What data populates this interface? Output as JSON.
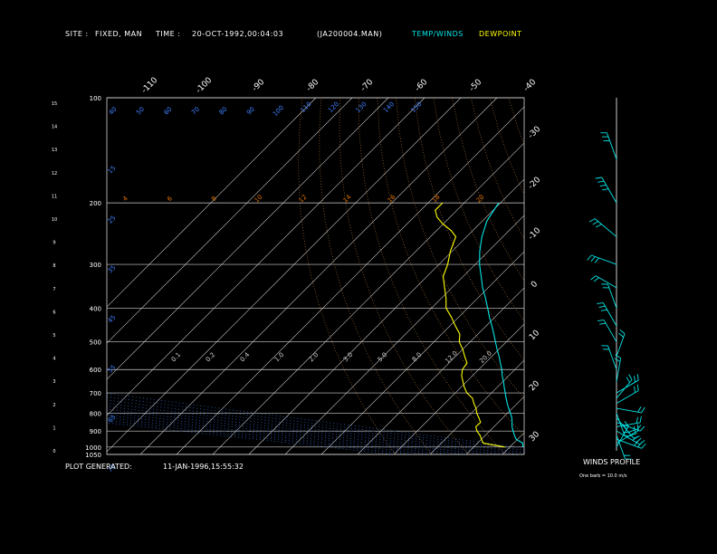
{
  "header": {
    "site_label": "SITE :",
    "site_value": "FIXED, MAN",
    "time_label": "TIME :",
    "time_value": "20-OCT-1992,00:04:03",
    "file_name": "(JA200004.MAN)",
    "legend_temp": "TEMP/WINDS",
    "legend_dew": "DEWPOINT"
  },
  "footer": {
    "generated_label": "PLOT GENERATED:",
    "generated_value": "11-JAN-1996,15:55:32",
    "winds_profile": "WINDS PROFILE",
    "barb_note": "One barb = 10.0 m/s"
  },
  "colors": {
    "temp": "#00e5e5",
    "dew": "#ffff00",
    "isotherm": "#d0d0d0",
    "isobar": "#d0d0d0",
    "mixing": "#e07000",
    "theta": "#c08040",
    "thetae": "#4080ff",
    "winds": "#00e5e5"
  },
  "chart_data": {
    "type": "line",
    "pressure_levels": [
      100,
      200,
      300,
      400,
      500,
      600,
      700,
      800,
      900,
      1000,
      1050
    ],
    "height_ticks": [
      "15",
      "14",
      "13",
      "12",
      "11",
      "10",
      "9",
      "8",
      "7",
      "6",
      "5",
      "4",
      "3",
      "2",
      "1",
      "0"
    ],
    "isotherm_labels_top": [
      "-110",
      "-100",
      "-90",
      "-80",
      "-70",
      "-60",
      "-50",
      "-40"
    ],
    "isotherm_labels_right": [
      "-30",
      "-20",
      "-10",
      "0",
      "10",
      "20",
      "30"
    ],
    "theta_labels": [
      "40",
      "50",
      "60",
      "70",
      "80",
      "90",
      "100",
      "110",
      "120",
      "130",
      "140",
      "150"
    ],
    "mixing_labels_upper": [
      "4",
      "6",
      "8",
      "10",
      "12",
      "14",
      "16",
      "18",
      "20"
    ],
    "mixing_labels_lower": [
      "0.1",
      "0.2",
      "0.4",
      "1.0",
      "2.0",
      "3.0",
      "5.0",
      "8.0",
      "12.0",
      "20.0"
    ],
    "thetae_labels": [
      "15",
      "25",
      "35",
      "45",
      "55",
      "65",
      "75"
    ],
    "series": [
      {
        "name": "TEMP/WINDS",
        "pressure": [
          1000,
          975,
          950,
          925,
          900,
          875,
          850,
          825,
          800,
          775,
          750,
          725,
          700,
          675,
          650,
          625,
          600,
          575,
          550,
          525,
          500,
          475,
          450,
          425,
          400,
          375,
          350,
          325,
          300,
          275,
          250,
          225,
          200
        ],
        "temperature": [
          13.6,
          12.5,
          9.6,
          8.0,
          6.5,
          5.0,
          3.8,
          2.5,
          0.8,
          -1.0,
          -2.8,
          -4.5,
          -6.2,
          -8.0,
          -9.8,
          -11.8,
          -13.6,
          -15.8,
          -18.0,
          -20.5,
          -23.0,
          -25.6,
          -28.4,
          -31.5,
          -34.5,
          -37.8,
          -41.5,
          -45.0,
          -48.8,
          -52.4,
          -55.8,
          -58.8,
          -60.5
        ]
      },
      {
        "name": "DEWPOINT",
        "pressure": [
          1000,
          975,
          950,
          925,
          900,
          875,
          850,
          825,
          800,
          775,
          750,
          725,
          700,
          675,
          650,
          625,
          600,
          575,
          550,
          525,
          500,
          475,
          450,
          425,
          400,
          375,
          350,
          325,
          300,
          275,
          250,
          240,
          230,
          220,
          210,
          200
        ],
        "dewpoint": [
          8.6,
          1.6,
          0.0,
          -1.5,
          -3.5,
          -5.0,
          -4.9,
          -6.6,
          -8.5,
          -10.0,
          -12.0,
          -13.8,
          -16.8,
          -19.0,
          -21.0,
          -23.0,
          -24.5,
          -25.0,
          -27.5,
          -30.0,
          -33.0,
          -35.0,
          -38.5,
          -42.0,
          -46.0,
          -48.7,
          -52.0,
          -55.5,
          -57.6,
          -60.5,
          -63.0,
          -66.0,
          -70.0,
          -73.5,
          -76.0,
          -76.0
        ]
      }
    ],
    "winds": [
      {
        "p": 1000,
        "dir": 330,
        "spd": 15
      },
      {
        "p": 975,
        "dir": 300,
        "spd": 20
      },
      {
        "p": 950,
        "dir": 250,
        "spd": 25
      },
      {
        "p": 925,
        "dir": 200,
        "spd": 20
      },
      {
        "p": 900,
        "dir": 240,
        "spd": 25
      },
      {
        "p": 875,
        "dir": 280,
        "spd": 15
      },
      {
        "p": 850,
        "dir": 250,
        "spd": 20
      },
      {
        "p": 825,
        "dir": 220,
        "spd": 25
      },
      {
        "p": 800,
        "dir": 200,
        "spd": 15
      },
      {
        "p": 775,
        "dir": 260,
        "spd": 20
      },
      {
        "p": 750,
        "dir": 300,
        "spd": 20
      },
      {
        "p": 725,
        "dir": 320,
        "spd": 15
      },
      {
        "p": 700,
        "dir": 300,
        "spd": 20
      },
      {
        "p": 650,
        "dir": 350,
        "spd": 15
      },
      {
        "p": 600,
        "dir": 20,
        "spd": 20
      },
      {
        "p": 550,
        "dir": 340,
        "spd": 15
      },
      {
        "p": 500,
        "dir": 30,
        "spd": 20
      },
      {
        "p": 450,
        "dir": 30,
        "spd": 25
      },
      {
        "p": 400,
        "dir": 20,
        "spd": 20
      },
      {
        "p": 350,
        "dir": 60,
        "spd": 15
      },
      {
        "p": 300,
        "dir": 70,
        "spd": 25
      },
      {
        "p": 250,
        "dir": 50,
        "spd": 30
      },
      {
        "p": 200,
        "dir": 30,
        "spd": 35
      },
      {
        "p": 150,
        "dir": 20,
        "spd": 30
      }
    ]
  }
}
